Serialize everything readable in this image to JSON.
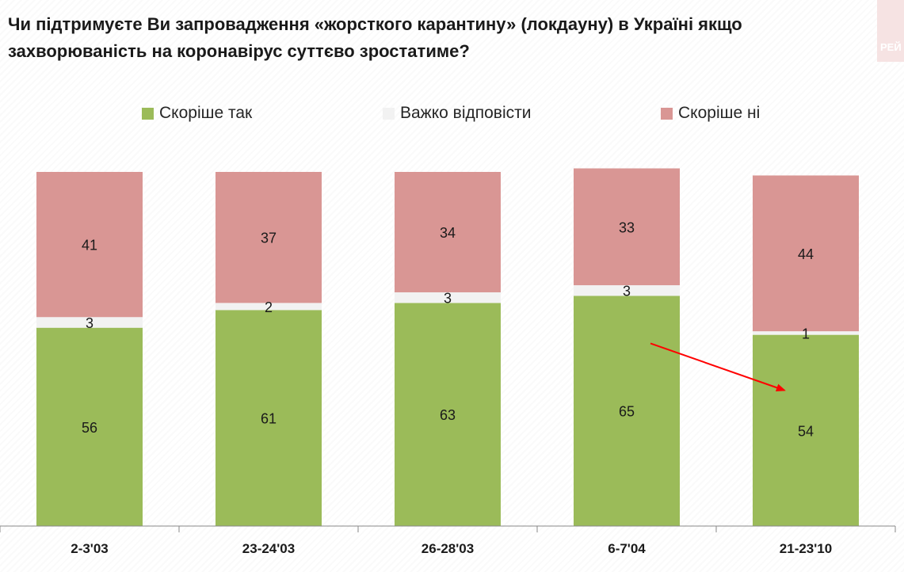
{
  "title": "Чи підтримуєте Ви запровадження «жорсткого карантину» (локдауну)  в Україні якщо захворюваність на коронавірус суттєво зростатиме?",
  "brand_text": "РЕЙ",
  "chart_data": {
    "type": "bar",
    "stacked": true,
    "categories": [
      "2-3'03",
      "23-24'03",
      "26-28'03",
      "6-7'04",
      "21-23'10"
    ],
    "series": [
      {
        "name": "Скоріше так",
        "values": [
          56,
          61,
          63,
          65,
          54
        ],
        "color": "#9bbb59"
      },
      {
        "name": "Важко відповісти",
        "values": [
          3,
          2,
          3,
          3,
          1
        ],
        "color": "#f2f2f2"
      },
      {
        "name": "Скоріше ні",
        "values": [
          41,
          37,
          34,
          33,
          44
        ],
        "color": "#d99694"
      }
    ],
    "ylim": [
      0,
      100
    ],
    "legend_position": "top",
    "annotation": {
      "type": "arrow",
      "color": "#ff0000",
      "from_category": "6-7'04",
      "to_category": "21-23'10"
    }
  }
}
